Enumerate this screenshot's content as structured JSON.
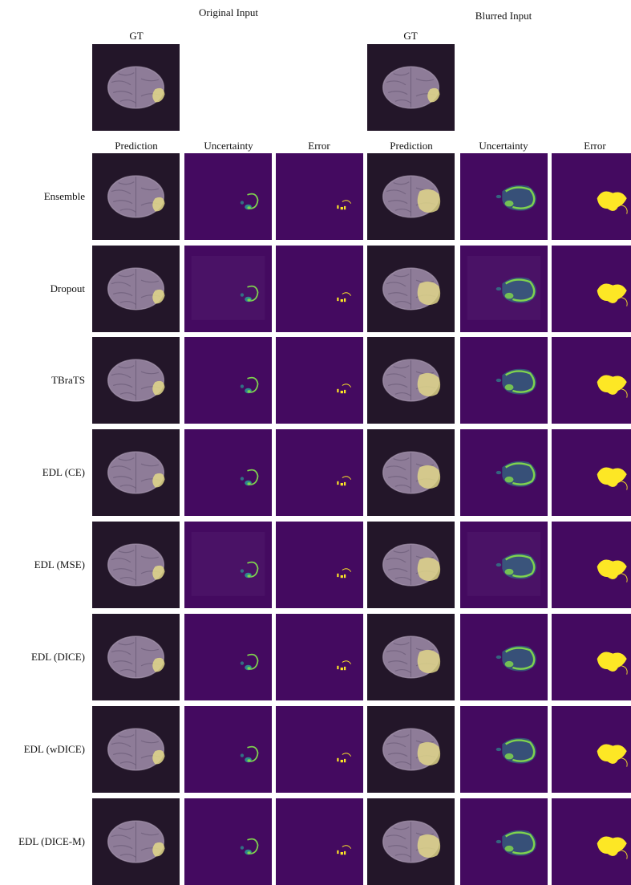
{
  "header": {
    "original_input": "Original Input",
    "blurred_input": "Blurred Input"
  },
  "gt_label": "GT",
  "column_labels": [
    "Prediction",
    "Uncertainty",
    "Error"
  ],
  "rows": [
    {
      "label": "Ensemble"
    },
    {
      "label": "Dropout"
    },
    {
      "label": "TBraTS"
    },
    {
      "label": "EDL (CE)"
    },
    {
      "label": "EDL (MSE)"
    },
    {
      "label": "EDL (DICE)"
    },
    {
      "label": "EDL (wDICE)"
    },
    {
      "label": "EDL (DICE-M)"
    }
  ],
  "colors": {
    "mri_background": "#231629",
    "brain": "#8e7c98",
    "tumor_overlay": "#e3d98a",
    "map_background": "#440a60",
    "map_background_faint": "#4a1266",
    "uncertainty_mid": "#2e8a8d",
    "uncertainty_high": "#7fd34e",
    "error": "#fde725"
  }
}
